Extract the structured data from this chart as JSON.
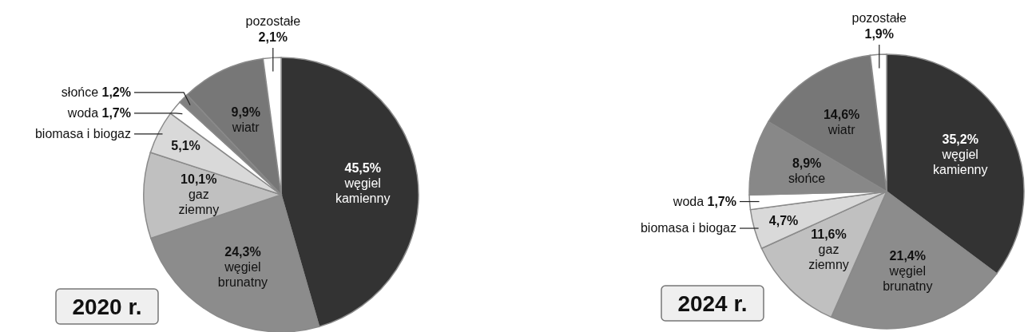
{
  "chart_data": [
    {
      "type": "pie",
      "title": "2020 r.",
      "categories": [
        "węgiel kamienny",
        "węgiel brunatny",
        "gaz ziemny",
        "biomasa i biogaz",
        "woda",
        "słońce",
        "wiatr",
        "pozostałe"
      ],
      "values": [
        45.5,
        24.3,
        10.1,
        5.1,
        1.7,
        1.2,
        9.9,
        2.1
      ],
      "value_labels": [
        "45,5%",
        "24,3%",
        "10,1%",
        "5,1%",
        "1,7%",
        "1,2%",
        "9,9%",
        "2,1%"
      ],
      "colors": [
        "#333333",
        "#8c8c8c",
        "#c0c0c0",
        "#d9d9d9",
        "#ffffff",
        "#808080",
        "#777777",
        "#ffffff"
      ]
    },
    {
      "type": "pie",
      "title": "2024 r.",
      "categories": [
        "węgiel kamienny",
        "węgiel brunatny",
        "gaz ziemny",
        "biomasa i biogaz",
        "woda",
        "słońce",
        "wiatr",
        "pozostałe"
      ],
      "values": [
        35.2,
        21.4,
        11.6,
        4.7,
        1.7,
        8.9,
        14.6,
        1.9
      ],
      "value_labels": [
        "35,2%",
        "21,4%",
        "11,6%",
        "4,7%",
        "1,7%",
        "8,9%",
        "14,6%",
        "1,9%"
      ],
      "colors": [
        "#333333",
        "#8c8c8c",
        "#c0c0c0",
        "#d9d9d9",
        "#ffffff",
        "#888888",
        "#777777",
        "#ffffff"
      ]
    }
  ]
}
